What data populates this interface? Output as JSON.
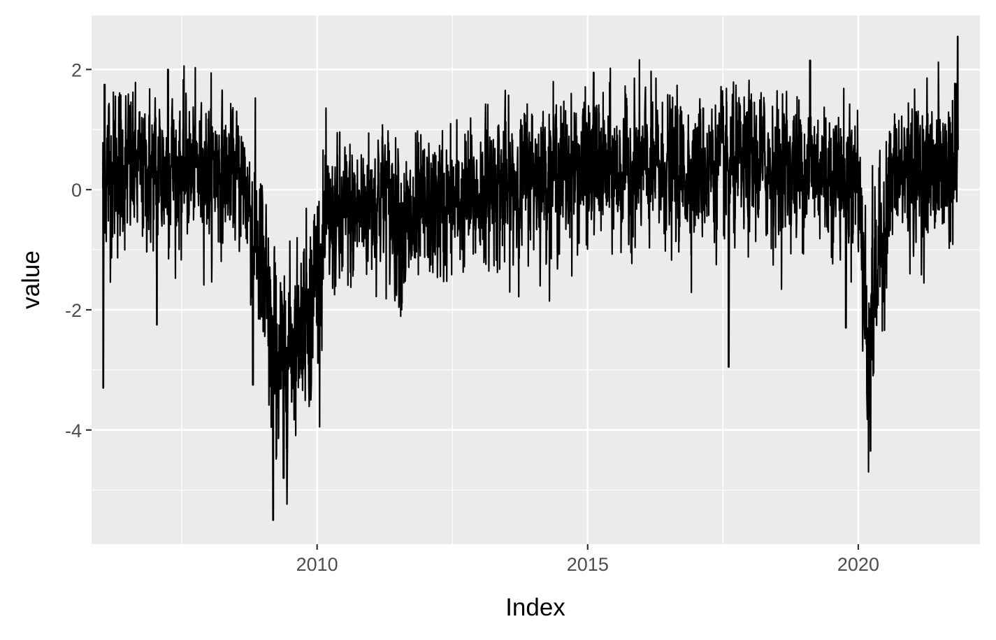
{
  "chart_data": {
    "type": "line",
    "xlabel": "Index",
    "ylabel": "value",
    "xlim": [
      "2005-11-01",
      "2022-04-01"
    ],
    "ylim": [
      -5.9,
      2.9
    ],
    "x_ticks": [
      {
        "date": "2010-01-01",
        "label": "2010"
      },
      {
        "date": "2015-01-01",
        "label": "2015"
      },
      {
        "date": "2020-01-01",
        "label": "2020"
      }
    ],
    "y_ticks": [
      {
        "value": 2,
        "label": "2"
      },
      {
        "value": 0,
        "label": "0"
      },
      {
        "value": -2,
        "label": "-2"
      },
      {
        "value": -4,
        "label": "-4"
      }
    ],
    "grid": true,
    "panel_background": "#ebebeb",
    "line_color": "#000000",
    "series": [
      {
        "x": [
          "2006-01-01",
          "2006-03-01",
          "2006-05-01",
          "2006-07-01",
          "2006-09-01",
          "2006-11-01",
          "2007-01-01",
          "2007-03-01",
          "2007-05-01",
          "2007-07-01",
          "2007-09-01",
          "2007-11-01",
          "2008-01-01",
          "2008-03-01",
          "2008-05-01",
          "2008-07-01",
          "2008-09-01",
          "2008-11-01",
          "2009-01-01",
          "2009-03-01",
          "2009-05-01",
          "2009-07-01",
          "2009-09-01",
          "2009-11-01",
          "2010-01-01",
          "2010-03-01",
          "2010-05-01",
          "2010-07-01",
          "2010-09-01",
          "2010-11-01",
          "2011-01-01",
          "2011-03-01",
          "2011-05-01",
          "2011-07-01",
          "2011-09-01",
          "2011-11-01",
          "2012-01-01",
          "2012-03-01",
          "2012-05-01",
          "2012-07-01",
          "2012-09-01",
          "2012-11-01",
          "2013-01-01",
          "2013-03-01",
          "2013-05-01",
          "2013-07-01",
          "2013-09-01",
          "2013-11-01",
          "2014-01-01",
          "2014-03-01",
          "2014-05-01",
          "2014-07-01",
          "2014-09-01",
          "2014-11-01",
          "2015-01-01",
          "2015-03-01",
          "2015-05-01",
          "2015-07-01",
          "2015-09-01",
          "2015-11-01",
          "2016-01-01",
          "2016-03-01",
          "2016-05-01",
          "2016-07-01",
          "2016-09-01",
          "2016-11-01",
          "2017-01-01",
          "2017-03-01",
          "2017-05-01",
          "2017-07-01",
          "2017-09-01",
          "2017-11-01",
          "2018-01-01",
          "2018-03-01",
          "2018-05-01",
          "2018-07-01",
          "2018-09-01",
          "2018-11-01",
          "2019-01-01",
          "2019-03-01",
          "2019-05-01",
          "2019-07-01",
          "2019-09-01",
          "2019-11-01",
          "2020-01-01",
          "2020-03-01",
          "2020-05-01",
          "2020-07-01",
          "2020-09-01",
          "2020-11-01",
          "2021-01-01",
          "2021-03-01",
          "2021-05-01",
          "2021-07-01",
          "2021-09-01",
          "2021-11-01"
        ],
        "center": [
          0.2,
          0.3,
          0.4,
          0.35,
          0.3,
          0.25,
          0.3,
          0.35,
          0.4,
          0.3,
          0.35,
          0.3,
          0.4,
          0.35,
          0.3,
          0.25,
          0.1,
          -0.6,
          -1.6,
          -2.6,
          -3.0,
          -2.6,
          -2.2,
          -1.9,
          -1.4,
          -0.7,
          -0.5,
          -0.6,
          -0.4,
          -0.3,
          -0.2,
          0.0,
          -0.2,
          -0.5,
          -0.7,
          -0.6,
          -0.4,
          -0.3,
          -0.3,
          -0.3,
          -0.2,
          -0.2,
          -0.1,
          0.0,
          0.1,
          -0.1,
          0.1,
          0.2,
          0.3,
          0.3,
          0.3,
          0.3,
          0.3,
          0.3,
          0.3,
          0.35,
          0.35,
          0.3,
          0.3,
          0.3,
          0.35,
          0.3,
          0.35,
          0.3,
          0.3,
          0.35,
          0.35,
          0.35,
          0.4,
          0.35,
          0.3,
          0.35,
          0.4,
          0.4,
          0.4,
          0.35,
          0.35,
          0.35,
          0.4,
          0.4,
          0.35,
          0.3,
          0.3,
          0.3,
          0.3,
          -2.6,
          -1.5,
          -0.4,
          0.2,
          0.3,
          0.3,
          0.3,
          0.35,
          0.35,
          0.35,
          0.5
        ],
        "amplitude": [
          0.9,
          1.0,
          0.9,
          0.9,
          0.8,
          0.8,
          0.9,
          0.9,
          0.8,
          0.8,
          0.8,
          0.7,
          0.8,
          0.8,
          0.7,
          0.7,
          0.8,
          1.0,
          1.1,
          1.2,
          1.1,
          1.0,
          0.9,
          0.9,
          1.0,
          0.9,
          0.8,
          0.9,
          0.9,
          0.8,
          0.8,
          0.8,
          0.8,
          0.9,
          0.9,
          0.9,
          0.8,
          0.8,
          0.8,
          0.8,
          0.8,
          0.8,
          0.8,
          0.8,
          0.8,
          0.9,
          0.8,
          0.8,
          0.8,
          0.8,
          0.8,
          0.8,
          0.8,
          0.8,
          0.8,
          0.8,
          0.8,
          0.8,
          0.8,
          0.8,
          0.8,
          0.8,
          0.8,
          0.8,
          0.8,
          0.8,
          0.8,
          0.8,
          0.8,
          0.8,
          0.8,
          0.8,
          0.8,
          0.8,
          0.8,
          0.8,
          0.8,
          0.8,
          0.8,
          0.8,
          0.8,
          0.8,
          0.8,
          0.8,
          0.8,
          1.3,
          1.0,
          0.9,
          0.8,
          0.8,
          0.8,
          0.8,
          0.8,
          0.8,
          0.8,
          0.9
        ]
      }
    ],
    "notable_points": [
      {
        "x": "2006-01-20",
        "y": -3.3
      },
      {
        "x": "2006-01-28",
        "y": 1.75
      },
      {
        "x": "2007-04-01",
        "y": 2.0
      },
      {
        "x": "2007-01-15",
        "y": -2.25
      },
      {
        "x": "2008-10-25",
        "y": -3.25
      },
      {
        "x": "2009-03-10",
        "y": -5.5
      },
      {
        "x": "2009-05-20",
        "y": -4.8
      },
      {
        "x": "2009-11-20",
        "y": -3.5
      },
      {
        "x": "2015-02-10",
        "y": 1.95
      },
      {
        "x": "2017-08-10",
        "y": -2.95
      },
      {
        "x": "2019-02-10",
        "y": 2.15
      },
      {
        "x": "2019-10-10",
        "y": -2.3
      },
      {
        "x": "2020-03-23",
        "y": -4.35
      },
      {
        "x": "2021-11-01",
        "y": 2.55
      }
    ]
  }
}
